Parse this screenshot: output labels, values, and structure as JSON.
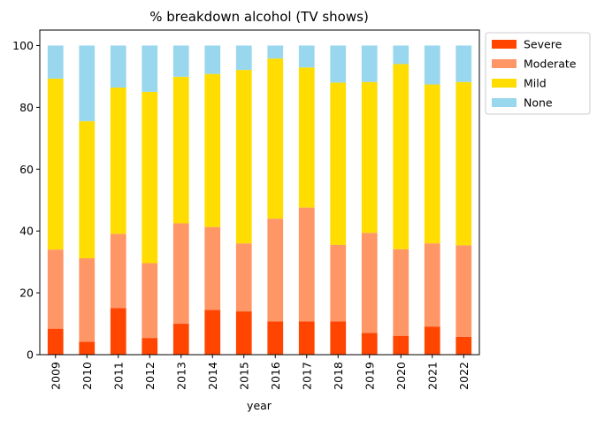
{
  "chart_data": {
    "type": "bar",
    "stacked": true,
    "title": "% breakdown alcohol (TV shows)",
    "xlabel": "year",
    "ylabel": "",
    "ylim": [
      0,
      105
    ],
    "yticks": [
      0,
      20,
      40,
      60,
      80,
      100
    ],
    "categories": [
      "2009",
      "2010",
      "2011",
      "2012",
      "2013",
      "2014",
      "2015",
      "2016",
      "2017",
      "2018",
      "2019",
      "2020",
      "2021",
      "2022"
    ],
    "series": [
      {
        "name": "Severe",
        "color": "#ff4500",
        "values": [
          8.4,
          4.2,
          15.1,
          5.4,
          10.0,
          14.5,
          14.0,
          10.8,
          10.8,
          10.8,
          7.0,
          6.1,
          9.1,
          5.8
        ]
      },
      {
        "name": "Moderate",
        "color": "#ff9666",
        "values": [
          25.6,
          27.0,
          24.0,
          24.2,
          32.5,
          26.8,
          22.0,
          33.2,
          36.8,
          24.7,
          32.4,
          28.0,
          26.9,
          29.6
        ]
      },
      {
        "name": "Mild",
        "color": "#ffdd00",
        "values": [
          55.3,
          44.3,
          47.3,
          55.4,
          47.4,
          49.5,
          56.1,
          51.8,
          45.3,
          52.5,
          48.8,
          59.9,
          51.4,
          52.8
        ]
      },
      {
        "name": "None",
        "color": "#98d7ee",
        "values": [
          10.7,
          24.5,
          13.6,
          15.0,
          10.1,
          9.2,
          7.9,
          4.2,
          7.1,
          12.0,
          11.8,
          6.0,
          12.6,
          11.8
        ]
      }
    ],
    "legend": "upper right, outside plot",
    "grid": false
  }
}
